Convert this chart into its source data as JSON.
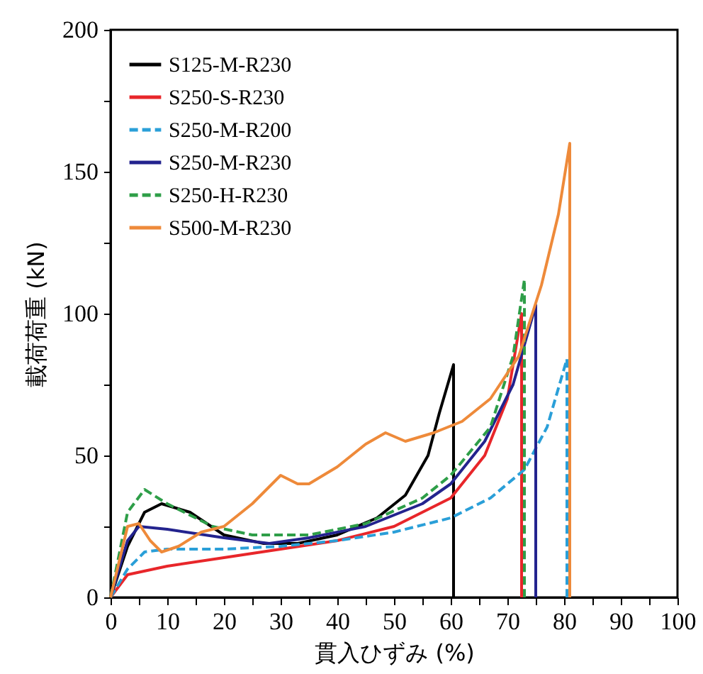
{
  "chart_data": {
    "type": "line",
    "xlabel": "貫入ひずみ (%)",
    "ylabel": "載荷荷重 (kN)",
    "xlim": [
      0,
      100
    ],
    "xticks": [
      0,
      {
        "value": 5,
        "label": null
      },
      10,
      {
        "value": 15,
        "label": null
      },
      20,
      {
        "value": 25,
        "label": null
      },
      30,
      {
        "value": 35,
        "label": null
      },
      40,
      {
        "value": 45,
        "label": null
      },
      50,
      {
        "value": 55,
        "label": null
      },
      60,
      {
        "value": 65,
        "label": null
      },
      70,
      {
        "value": 75,
        "label": null
      },
      80,
      {
        "value": 85,
        "label": null
      },
      90,
      {
        "value": 95,
        "label": null
      },
      100
    ],
    "ylim": [
      0,
      200
    ],
    "yticks": [
      0,
      {
        "value": 25,
        "label": null
      },
      50,
      {
        "value": 75,
        "label": null
      },
      100,
      {
        "value": 125,
        "label": null
      },
      150,
      {
        "value": 175,
        "label": null
      },
      200
    ],
    "legend": "top left",
    "grid": false,
    "series": [
      {
        "name": "S125-M-R230",
        "color": "#000000",
        "line_style": "solid",
        "x": [
          0,
          3,
          6,
          9,
          14,
          20,
          27,
          33,
          40,
          47,
          52,
          56,
          58,
          60.5,
          60.5
        ],
        "values": [
          0,
          18,
          30,
          33,
          30,
          22,
          19,
          19,
          22,
          28,
          36,
          50,
          65,
          82,
          0
        ]
      },
      {
        "name": "S250-S-R230",
        "color": "#e8262a",
        "line_style": "solid",
        "x": [
          0,
          3,
          10,
          20,
          30,
          40,
          50,
          60,
          66,
          70,
          72.5,
          72.5
        ],
        "values": [
          0,
          8,
          11,
          14,
          17,
          20,
          25,
          35,
          50,
          70,
          100,
          0
        ]
      },
      {
        "name": "S250-M-R200",
        "color": "#2a9fd8",
        "line_style": "dashed",
        "x": [
          0,
          3,
          6,
          10,
          20,
          30,
          40,
          50,
          60,
          67,
          73,
          77,
          80.5,
          80.5
        ],
        "values": [
          0,
          10,
          16,
          17,
          17,
          18,
          20,
          23,
          28,
          35,
          45,
          60,
          84,
          0
        ]
      },
      {
        "name": "S250-M-R230",
        "color": "#23238e",
        "line_style": "solid",
        "x": [
          0,
          3,
          5,
          10,
          20,
          28,
          35,
          45,
          55,
          60,
          66,
          71,
          75,
          75
        ],
        "values": [
          0,
          20,
          25,
          24,
          21,
          19,
          21,
          25,
          33,
          40,
          55,
          75,
          103,
          0
        ]
      },
      {
        "name": "S250-H-R230",
        "color": "#2e9e48",
        "line_style": "dashed",
        "x": [
          0,
          3,
          6,
          10,
          18,
          25,
          35,
          45,
          55,
          60,
          67,
          71,
          73,
          73
        ],
        "values": [
          0,
          30,
          38,
          33,
          25,
          22,
          22,
          26,
          35,
          43,
          60,
          85,
          112,
          0
        ]
      },
      {
        "name": "S500-M-R230",
        "color": "#ee8a3a",
        "line_style": "solid",
        "x": [
          0,
          3,
          5,
          7,
          9,
          12,
          16,
          20,
          25,
          30,
          33,
          35,
          40,
          45,
          48.5,
          52,
          57,
          62,
          67,
          72,
          76,
          79,
          81,
          81
        ],
        "values": [
          0,
          25,
          26,
          20,
          16,
          18,
          23,
          25,
          33,
          43,
          40,
          40,
          46,
          54,
          58,
          55,
          58,
          62,
          70,
          85,
          110,
          135,
          160,
          0
        ]
      }
    ]
  }
}
